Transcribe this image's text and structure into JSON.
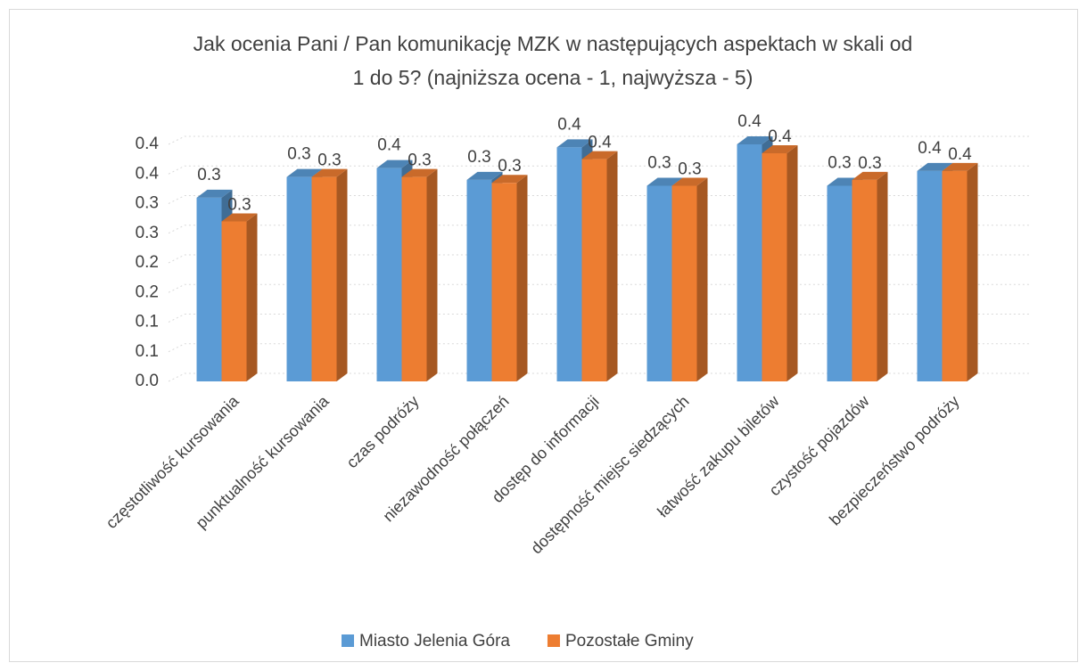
{
  "chart_data": {
    "type": "bar3d",
    "title": "Jak ocenia Pani / Pan komunikację MZK w następujących aspektach w skali od",
    "subtitle": "1 do 5? (najniższa ocena - 1, najwyższa - 5)",
    "categories": [
      "częstotliwość kursowania",
      "punktualność kursowania",
      "czas podróży",
      "niezawodność połączeń",
      "dostęp do informacji",
      "dostępność miejsc siedzących",
      "łatwość zakupu biletów",
      "czystość pojazdów",
      "bezpieczeństwo podróży"
    ],
    "series": [
      {
        "name": "Miasto Jelenia Góra",
        "color": "#5b9bd5",
        "values": [
          0.31,
          0.345,
          0.36,
          0.34,
          0.395,
          0.33,
          0.4,
          0.33,
          0.355
        ],
        "value_labels": [
          "0.3",
          "0.3",
          "0.4",
          "0.3",
          "0.4",
          "0.3",
          "0.4",
          "0.3",
          "0.4"
        ]
      },
      {
        "name": "Pozostałe Gminy",
        "color": "#ed7d31",
        "values": [
          0.27,
          0.345,
          0.345,
          0.335,
          0.375,
          0.33,
          0.385,
          0.34,
          0.355
        ],
        "value_labels": [
          "0.3",
          "0.3",
          "0.3",
          "0.3",
          "0.4",
          "0.3",
          "0.4",
          "0.3",
          "0.4"
        ]
      }
    ],
    "ylim": [
      0,
      0.4
    ],
    "yticks": [
      {
        "value": 0,
        "label": "0.0"
      },
      {
        "value": 0.05,
        "label": "0.1"
      },
      {
        "value": 0.1,
        "label": "0.1"
      },
      {
        "value": 0.15,
        "label": "0.2"
      },
      {
        "value": 0.2,
        "label": "0.2"
      },
      {
        "value": 0.25,
        "label": "0.3"
      },
      {
        "value": 0.3,
        "label": "0.3"
      },
      {
        "value": 0.35,
        "label": "0.4"
      },
      {
        "value": 0.4,
        "label": "0.4"
      }
    ],
    "grid": true,
    "legend": "bottom"
  }
}
